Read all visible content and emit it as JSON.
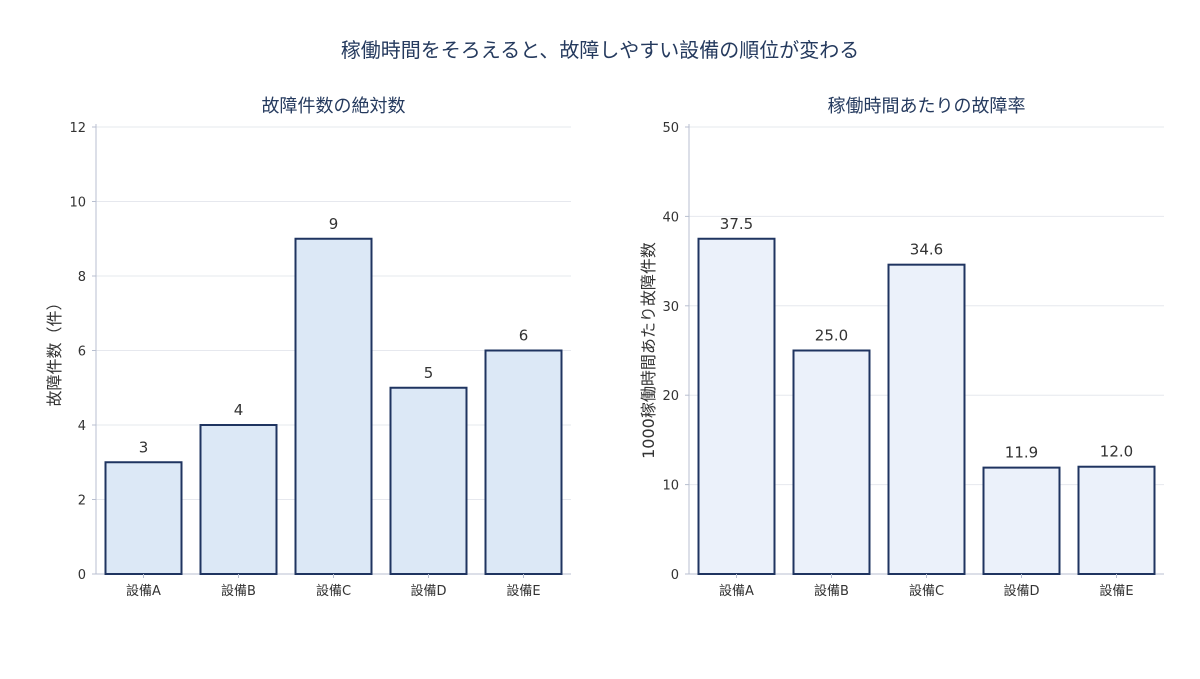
{
  "figure": {
    "title": "稼働時間をそろえると、故障しやすい設備の順位が変わる"
  },
  "colors": {
    "title": "#253a5e",
    "axis": "#b8bfd0",
    "grid": "#e6e8ee",
    "tick_text": "#333333",
    "bar_stroke": "#1f3460",
    "left_fill": "#dce8f6",
    "right_fill": "#ebf1fa"
  },
  "chart_data": [
    {
      "type": "bar",
      "title": "故障件数の絶対数",
      "xlabel": "",
      "ylabel": "故障件数（件）",
      "categories": [
        "設備A",
        "設備B",
        "設備C",
        "設備D",
        "設備E"
      ],
      "values": [
        3,
        4,
        9,
        5,
        6
      ],
      "value_labels": [
        "3",
        "4",
        "9",
        "5",
        "6"
      ],
      "ylim": [
        0,
        12
      ],
      "yticks": [
        0,
        2,
        4,
        6,
        8,
        10,
        12
      ],
      "grid": true
    },
    {
      "type": "bar",
      "title": "稼働時間あたりの故障率",
      "xlabel": "",
      "ylabel": "1000稼働時間あたり故障件数",
      "categories": [
        "設備A",
        "設備B",
        "設備C",
        "設備D",
        "設備E"
      ],
      "values": [
        37.5,
        25.0,
        34.6,
        11.9,
        12.0
      ],
      "value_labels": [
        "37.5",
        "25.0",
        "34.6",
        "11.9",
        "12.0"
      ],
      "ylim": [
        0,
        50
      ],
      "yticks": [
        0,
        10,
        20,
        30,
        40,
        50
      ],
      "grid": true
    }
  ]
}
